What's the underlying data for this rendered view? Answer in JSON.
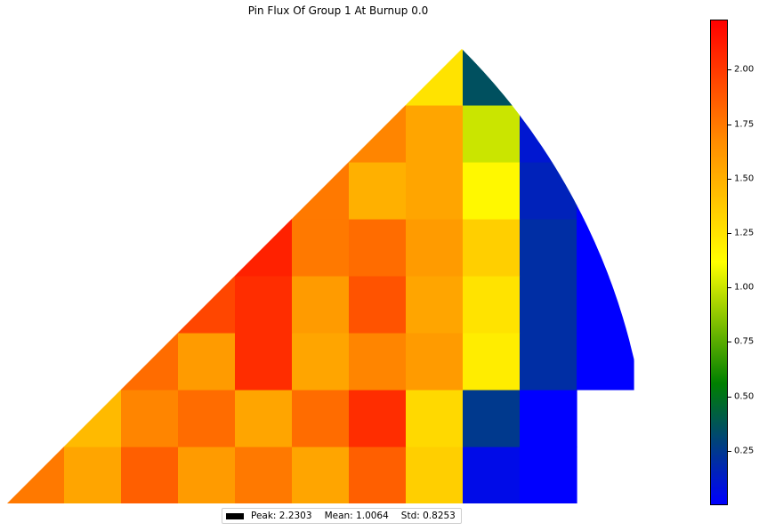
{
  "chart_data": {
    "type": "heatmap",
    "title": "Pin Flux Of Group 1 At Burnup 0.0",
    "subtitle": "",
    "xlabel": "",
    "ylabel": "",
    "geometry": "one-eighth core section (45° wedge)",
    "colorscale": [
      "#0000ff",
      "#008000",
      "#ffff00",
      "#ff8c00",
      "#ff0000"
    ],
    "colorbar": {
      "range": [
        0.0,
        2.2303
      ],
      "ticks": [
        0.25,
        0.5,
        0.75,
        1.0,
        1.25,
        1.5,
        1.75,
        2.0
      ],
      "tick_labels": [
        "0.25",
        "0.50",
        "0.75",
        "1.00",
        "1.25",
        "1.50",
        "1.75",
        "2.00"
      ]
    },
    "grid": false,
    "assembly_values": [
      [
        1.75,
        1.55,
        1.85,
        1.6,
        1.75,
        1.55,
        1.85,
        1.35,
        0.05,
        0.0
      ],
      [
        1.45,
        1.7,
        1.8,
        1.55,
        1.8,
        2.05,
        1.3,
        0.25,
        0.0
      ],
      [
        1.8,
        1.6,
        2.05,
        1.55,
        1.7,
        1.6,
        1.2,
        0.2,
        0.0
      ],
      [
        1.95,
        2.05,
        1.6,
        1.9,
        1.55,
        1.25,
        0.2,
        0.0
      ],
      [
        2.1,
        1.75,
        1.8,
        1.6,
        1.35,
        0.2,
        0.0
      ],
      [
        1.75,
        1.5,
        1.55,
        1.15,
        0.15,
        0.0
      ],
      [
        1.7,
        1.55,
        1.0,
        0.1,
        0.0
      ],
      [
        1.25,
        0.35,
        0.05,
        0.0
      ],
      [
        0.0,
        0.0
      ],
      [
        0.0
      ]
    ],
    "statistics": {
      "peak": 2.2303,
      "mean": 1.0064,
      "std": 0.8253
    }
  },
  "legend": {
    "position": "bottom-center",
    "text": "Peak: 2.2303    Mean: 1.0064    Std: 0.8253",
    "peak": "Peak: 2.2303",
    "mean": "Mean: 1.0064",
    "std": "Std: 0.8253"
  }
}
